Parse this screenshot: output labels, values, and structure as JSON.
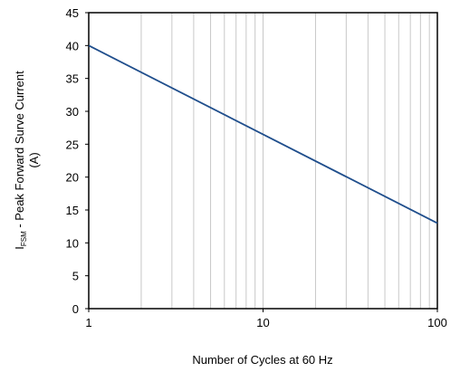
{
  "chart_data": {
    "type": "line",
    "xscale": "log",
    "xlim": [
      1,
      100
    ],
    "ylim": [
      0,
      45
    ],
    "x_ticks": [
      "1",
      "10",
      "100"
    ],
    "y_ticks": [
      "0",
      "5",
      "10",
      "15",
      "20",
      "25",
      "30",
      "35",
      "40",
      "45"
    ],
    "xlabel": "Number of Cycles at 60 Hz",
    "ylabel": {
      "symbol": "I",
      "subscript": "FSM",
      "line1": " - Peak Forward Surve Current",
      "line2": "(A)"
    },
    "grid": {
      "x": true,
      "y": false
    },
    "series": [
      {
        "color": "#1f4e8c",
        "x": [
          1,
          100
        ],
        "y": [
          40,
          13
        ]
      }
    ]
  }
}
